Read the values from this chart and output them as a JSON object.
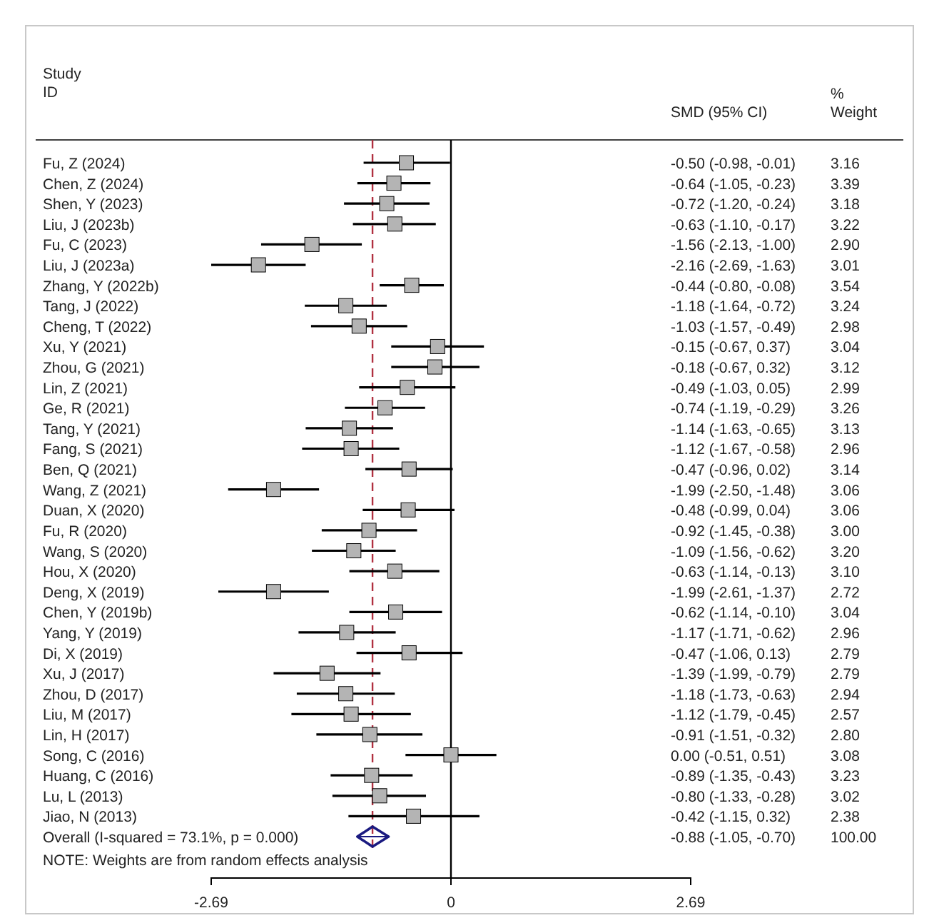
{
  "chart_data": {
    "type": "scatter",
    "orientation": "horizontal",
    "ylabel": "Study ID",
    "categories": [
      "Fu, Z (2024)",
      "Chen, Z (2024)",
      "Shen, Y (2023)",
      "Liu, J (2023b)",
      "Fu, C (2023)",
      "Liu, J (2023a)",
      "Zhang, Y (2022b)",
      "Tang, J (2022)",
      "Cheng, T (2022)",
      "Xu, Y (2021)",
      "Zhou, G (2021)",
      "Lin, Z (2021)",
      "Ge, R (2021)",
      "Tang, Y (2021)",
      "Fang, S (2021)",
      "Ben, Q (2021)",
      "Wang, Z (2021)",
      "Duan, X (2020)",
      "Fu, R (2020)",
      "Wang, S (2020)",
      "Hou, X (2020)",
      "Deng, X (2019)",
      "Chen, Y (2019b)",
      "Yang, Y (2019)",
      "Di, X (2019)",
      "Xu, J (2017)",
      "Zhou, D (2017)",
      "Liu, M (2017)",
      "Lin, H (2017)",
      "Song, C (2016)",
      "Huang, C (2016)",
      "Lu, L (2013)",
      "Jiao, N (2013)",
      "Overall  (I-squared = 73.1%, p = 0.000)"
    ],
    "series": [
      {
        "color": "#000000",
        "marker": "square",
        "values": [
          -0.5,
          -0.64,
          -0.72,
          -0.63,
          -1.56,
          -2.16,
          -0.44,
          -1.18,
          -1.03,
          -0.15,
          -0.18,
          -0.49,
          -0.74,
          -1.14,
          -1.12,
          -0.47,
          -1.99,
          -0.48,
          -0.92,
          -1.09,
          -0.63,
          -1.99,
          -0.62,
          -1.17,
          -0.47,
          -1.39,
          -1.18,
          -1.12,
          -0.91,
          0.0,
          -0.89,
          -0.8,
          -0.42,
          null
        ],
        "errors": [
          [
            -0.98,
            -0.01
          ],
          [
            -1.05,
            -0.23
          ],
          [
            -1.2,
            -0.24
          ],
          [
            -1.1,
            -0.17
          ],
          [
            -2.13,
            -1.0
          ],
          [
            -2.69,
            -1.63
          ],
          [
            -0.8,
            -0.08
          ],
          [
            -1.64,
            -0.72
          ],
          [
            -1.57,
            -0.49
          ],
          [
            -0.67,
            0.37
          ],
          [
            -0.67,
            0.32
          ],
          [
            -1.03,
            0.05
          ],
          [
            -1.19,
            -0.29
          ],
          [
            -1.63,
            -0.65
          ],
          [
            -1.67,
            -0.58
          ],
          [
            -0.96,
            0.02
          ],
          [
            -2.5,
            -1.48
          ],
          [
            -0.99,
            0.04
          ],
          [
            -1.45,
            -0.38
          ],
          [
            -1.56,
            -0.62
          ],
          [
            -1.14,
            -0.13
          ],
          [
            -2.61,
            -1.37
          ],
          [
            -1.14,
            -0.1
          ],
          [
            -1.71,
            -0.62
          ],
          [
            -1.06,
            0.13
          ],
          [
            -1.99,
            -0.79
          ],
          [
            -1.73,
            -0.63
          ],
          [
            -1.79,
            -0.45
          ],
          [
            -1.51,
            -0.32
          ],
          [
            -0.51,
            0.51
          ],
          [
            -1.35,
            -0.43
          ],
          [
            -1.33,
            -0.28
          ],
          [
            -1.15,
            0.32
          ],
          null
        ],
        "value_labels": [
          "-0.50 (-0.98, -0.01)",
          "-0.64 (-1.05, -0.23)",
          "-0.72 (-1.20, -0.24)",
          "-0.63 (-1.10, -0.17)",
          "-1.56 (-2.13, -1.00)",
          "-2.16 (-2.69, -1.63)",
          "-0.44 (-0.80, -0.08)",
          "-1.18 (-1.64, -0.72)",
          "-1.03 (-1.57, -0.49)",
          "-0.15 (-0.67, 0.37)",
          "-0.18 (-0.67, 0.32)",
          "-0.49 (-1.03, 0.05)",
          "-0.74 (-1.19, -0.29)",
          "-1.14 (-1.63, -0.65)",
          "-1.12 (-1.67, -0.58)",
          "-0.47 (-0.96, 0.02)",
          "-1.99 (-2.50, -1.48)",
          "-0.48 (-0.99, 0.04)",
          "-0.92 (-1.45, -0.38)",
          "-1.09 (-1.56, -0.62)",
          "-0.63 (-1.14, -0.13)",
          "-1.99 (-2.61, -1.37)",
          "-0.62 (-1.14, -0.10)",
          "-1.17 (-1.71, -0.62)",
          "-0.47 (-1.06, 0.13)",
          "-1.39 (-1.99, -0.79)",
          "-1.18 (-1.73, -0.63)",
          "-1.12 (-1.79, -0.45)",
          "-0.91 (-1.51, -0.32)",
          "0.00 (-0.51, 0.51)",
          "-0.89 (-1.35, -0.43)",
          "-0.80 (-1.33, -0.28)",
          "-0.42 (-1.15, 0.32)",
          null
        ]
      },
      {
        "color": "#1a1a80",
        "marker": "diamond",
        "values": [
          null,
          null,
          null,
          null,
          null,
          null,
          null,
          null,
          null,
          null,
          null,
          null,
          null,
          null,
          null,
          null,
          null,
          null,
          null,
          null,
          null,
          null,
          null,
          null,
          null,
          null,
          null,
          null,
          null,
          null,
          null,
          null,
          null,
          -0.88
        ],
        "errors": [
          null,
          null,
          null,
          null,
          null,
          null,
          null,
          null,
          null,
          null,
          null,
          null,
          null,
          null,
          null,
          null,
          null,
          null,
          null,
          null,
          null,
          null,
          null,
          null,
          null,
          null,
          null,
          null,
          null,
          null,
          null,
          null,
          null,
          [
            -1.05,
            -0.7
          ]
        ]
      }
    ],
    "xlim": [
      -2.69,
      2.69
    ],
    "xticks": [
      -2.69,
      0,
      2.69
    ],
    "ref_lines": [
      {
        "axis": "x",
        "value": 0,
        "color": "#000000",
        "line_style": "solid"
      },
      {
        "axis": "x",
        "value": -0.88,
        "color": "#b03040",
        "line_style": "dashed"
      }
    ],
    "annotations": [
      "SMD (95% CI)",
      "% Weight",
      "NOTE: Weights are from random effects analysis",
      "-0.88 (-1.05, -0.70)",
      "3.16",
      "3.39",
      "3.18",
      "3.22",
      "2.90",
      "3.01",
      "3.54",
      "3.24",
      "2.98",
      "3.04",
      "3.12",
      "2.99",
      "3.26",
      "3.13",
      "2.96",
      "3.14",
      "3.06",
      "3.06",
      "3.00",
      "3.20",
      "3.10",
      "2.72",
      "3.04",
      "2.96",
      "2.79",
      "2.79",
      "2.94",
      "2.57",
      "2.80",
      "3.08",
      "3.23",
      "3.02",
      "2.38",
      "100.00"
    ],
    "grid": false
  }
}
